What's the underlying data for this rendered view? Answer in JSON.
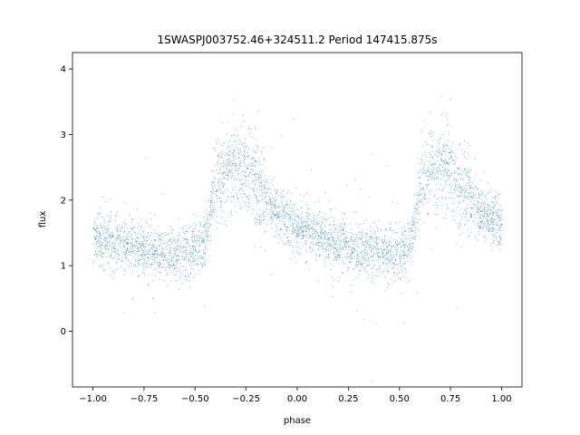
{
  "chart_data": {
    "type": "scatter",
    "title": "1SWASPJ003752.46+324511.2 Period 147415.875s",
    "xlabel": "phase",
    "ylabel": "flux",
    "xlim": [
      -1.1,
      1.1
    ],
    "ylim": [
      -0.85,
      4.25
    ],
    "x_ticks": [
      -1.0,
      -0.75,
      -0.5,
      -0.25,
      0.0,
      0.25,
      0.5,
      0.75,
      1.0
    ],
    "x_tick_labels": [
      "−1.00",
      "−0.75",
      "−0.50",
      "−0.25",
      "0.00",
      "0.25",
      "0.50",
      "0.75",
      "1.00"
    ],
    "y_ticks": [
      0,
      1,
      2,
      3,
      4
    ],
    "y_tick_labels": [
      "0",
      "1",
      "2",
      "3",
      "4"
    ],
    "grid": false,
    "point_color": "#1f77b4",
    "series": [
      {
        "x": [
          -1.0,
          -0.95,
          -0.9,
          -0.85,
          -0.8,
          -0.75,
          -0.7,
          -0.65,
          -0.6,
          -0.55,
          -0.5,
          -0.45,
          -0.4,
          -0.35,
          -0.3,
          -0.25,
          -0.2,
          -0.15,
          -0.1,
          -0.05,
          0.0,
          0.05,
          0.1,
          0.15,
          0.2,
          0.25,
          0.3,
          0.35,
          0.4,
          0.45,
          0.5,
          0.55,
          0.6,
          0.65,
          0.7,
          0.75,
          0.8,
          0.85,
          0.9,
          0.95,
          1.0
        ],
        "y": [
          1.45,
          1.4,
          1.35,
          1.3,
          1.27,
          1.25,
          1.22,
          1.2,
          1.2,
          1.22,
          1.25,
          1.35,
          2.3,
          2.45,
          2.5,
          2.45,
          2.3,
          1.95,
          1.8,
          1.7,
          1.6,
          1.55,
          1.45,
          1.4,
          1.32,
          1.28,
          1.25,
          1.22,
          1.2,
          1.2,
          1.22,
          1.3,
          2.2,
          2.45,
          2.5,
          2.45,
          2.3,
          1.95,
          1.8,
          1.7,
          1.6
        ]
      }
    ]
  }
}
